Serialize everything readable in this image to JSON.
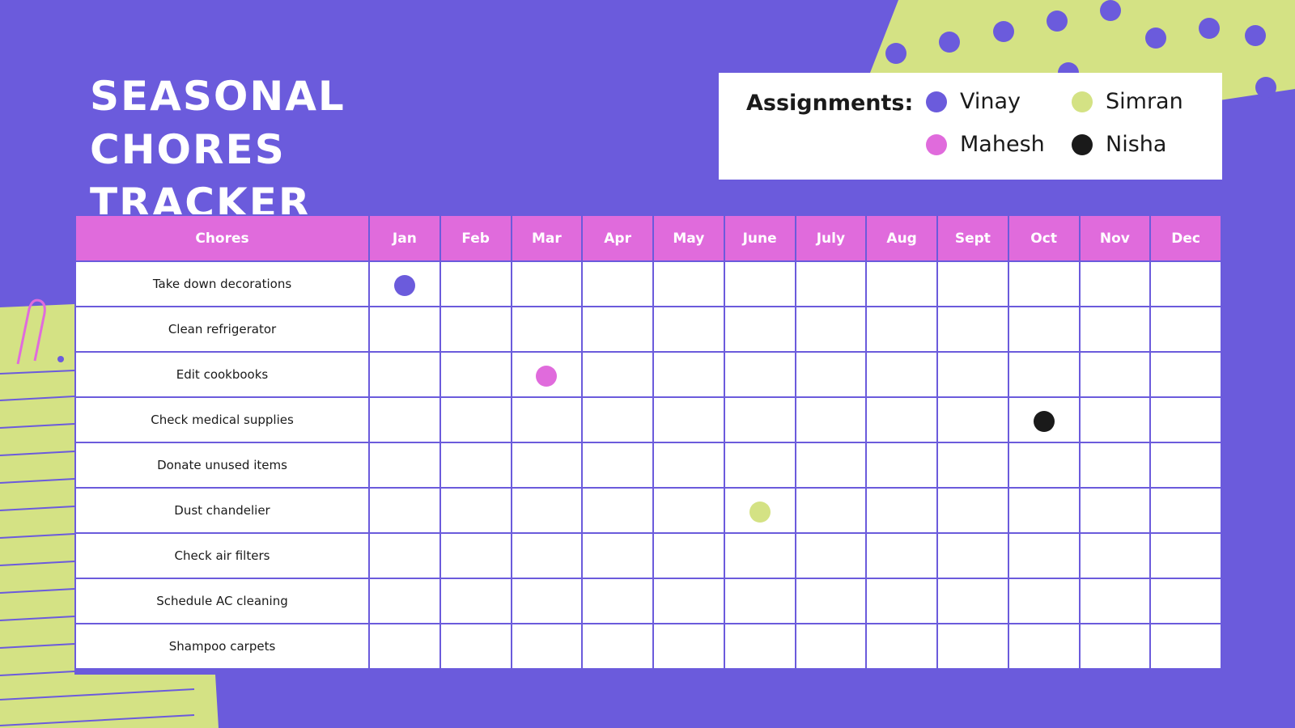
{
  "title": "SEASONAL CHORES TRACKER",
  "legend": {
    "label": "Assignments:",
    "people": [
      {
        "name": "Vinay",
        "color": "#6b5bdc"
      },
      {
        "name": "Simran",
        "color": "#d4e284"
      },
      {
        "name": "Mahesh",
        "color": "#e06bdc"
      },
      {
        "name": "Nisha",
        "color": "#1a1a1a"
      }
    ]
  },
  "table": {
    "header": [
      "Chores",
      "Jan",
      "Feb",
      "Mar",
      "Apr",
      "May",
      "June",
      "July",
      "Aug",
      "Sept",
      "Oct",
      "Nov",
      "Dec"
    ],
    "rows": [
      {
        "chore": "Take down decorations",
        "month": "Jan",
        "person": "Vinay"
      },
      {
        "chore": "Clean refrigerator"
      },
      {
        "chore": "Edit cookbooks",
        "month": "Mar",
        "person": "Mahesh"
      },
      {
        "chore": "Check medical supplies",
        "month": "Oct",
        "person": "Nisha"
      },
      {
        "chore": "Donate unused items"
      },
      {
        "chore": "Dust chandelier",
        "month": "June",
        "person": "Simran"
      },
      {
        "chore": "Check air filters"
      },
      {
        "chore": "Schedule AC cleaning"
      },
      {
        "chore": "Shampoo carpets"
      }
    ]
  }
}
